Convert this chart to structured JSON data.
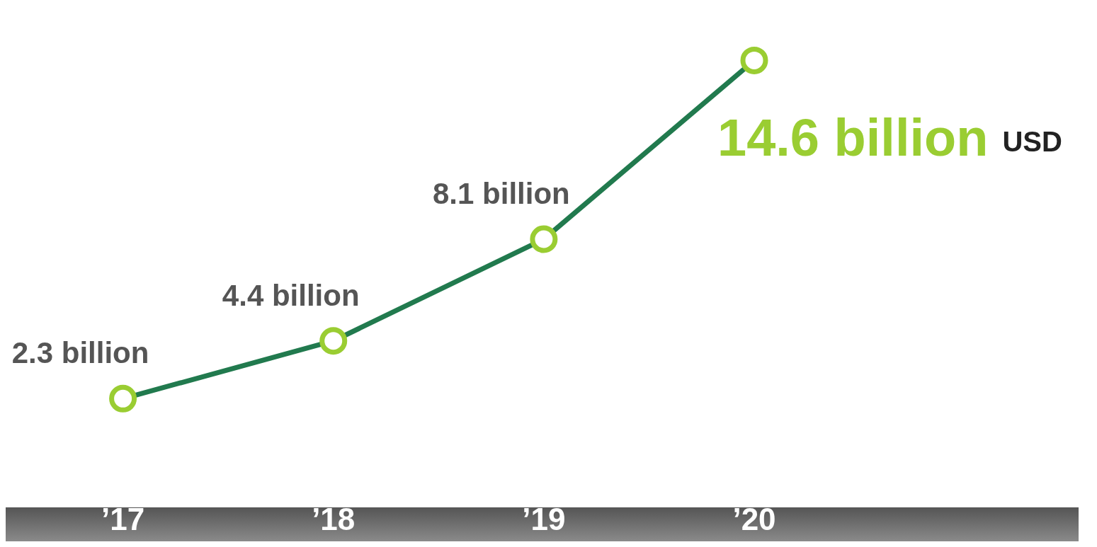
{
  "chart_data": {
    "type": "line",
    "categories": [
      "’17",
      "’18",
      "’19",
      "’20"
    ],
    "series": [
      {
        "color": "#217a4e",
        "values": [
          2.3,
          4.4,
          8.1,
          14.6
        ],
        "value_labels": [
          "2.3 billion",
          "4.4 billion",
          "8.1 billion",
          "14.6 billion"
        ]
      }
    ],
    "marker": "circle",
    "annotations": [
      "USD"
    ]
  }
}
